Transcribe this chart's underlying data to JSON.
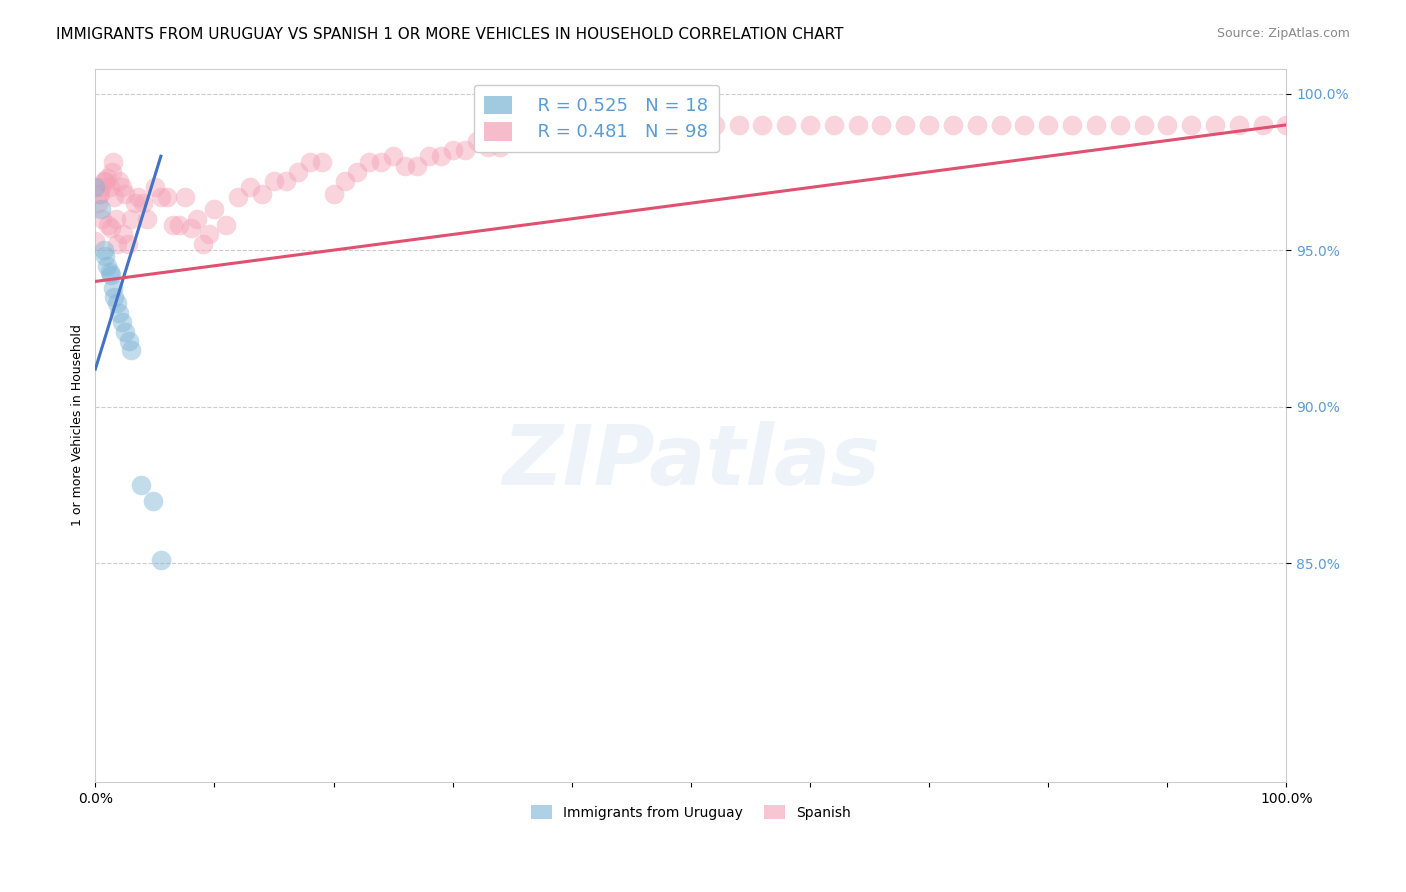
{
  "title": "IMMIGRANTS FROM URUGUAY VS SPANISH 1 OR MORE VEHICLES IN HOUSEHOLD CORRELATION CHART",
  "source": "Source: ZipAtlas.com",
  "ylabel": "1 or more Vehicles in Household",
  "watermark": "ZIPatlas",
  "blue_scatter_x": [
    0.0,
    0.005,
    0.007,
    0.008,
    0.01,
    0.012,
    0.013,
    0.015,
    0.016,
    0.018,
    0.02,
    0.022,
    0.025,
    0.028,
    0.03,
    0.038,
    0.048,
    0.055
  ],
  "blue_scatter_y": [
    0.97,
    0.963,
    0.95,
    0.948,
    0.945,
    0.943,
    0.942,
    0.938,
    0.935,
    0.933,
    0.93,
    0.927,
    0.924,
    0.921,
    0.918,
    0.875,
    0.87,
    0.851
  ],
  "pink_scatter_x": [
    0.0,
    0.002,
    0.003,
    0.004,
    0.005,
    0.006,
    0.007,
    0.008,
    0.01,
    0.011,
    0.012,
    0.013,
    0.014,
    0.015,
    0.016,
    0.017,
    0.018,
    0.02,
    0.022,
    0.023,
    0.025,
    0.027,
    0.03,
    0.033,
    0.036,
    0.04,
    0.043,
    0.05,
    0.055,
    0.06,
    0.065,
    0.07,
    0.075,
    0.08,
    0.085,
    0.09,
    0.095,
    0.1,
    0.11,
    0.12,
    0.13,
    0.14,
    0.15,
    0.16,
    0.17,
    0.18,
    0.19,
    0.2,
    0.21,
    0.22,
    0.23,
    0.24,
    0.25,
    0.26,
    0.27,
    0.28,
    0.29,
    0.3,
    0.31,
    0.32,
    0.33,
    0.34,
    0.35,
    0.36,
    0.37,
    0.38,
    0.39,
    0.4,
    0.42,
    0.44,
    0.46,
    0.48,
    0.5,
    0.52,
    0.54,
    0.56,
    0.58,
    0.6,
    0.62,
    0.64,
    0.66,
    0.68,
    0.7,
    0.72,
    0.74,
    0.76,
    0.78,
    0.8,
    0.82,
    0.84,
    0.86,
    0.88,
    0.9,
    0.92,
    0.94,
    0.96,
    0.98,
    1.0
  ],
  "pink_scatter_y": [
    0.953,
    0.965,
    0.968,
    0.968,
    0.97,
    0.96,
    0.972,
    0.972,
    0.973,
    0.958,
    0.97,
    0.957,
    0.975,
    0.978,
    0.967,
    0.96,
    0.952,
    0.972,
    0.97,
    0.955,
    0.968,
    0.952,
    0.96,
    0.965,
    0.967,
    0.965,
    0.96,
    0.97,
    0.967,
    0.967,
    0.958,
    0.958,
    0.967,
    0.957,
    0.96,
    0.952,
    0.955,
    0.963,
    0.958,
    0.967,
    0.97,
    0.968,
    0.972,
    0.972,
    0.975,
    0.978,
    0.978,
    0.968,
    0.972,
    0.975,
    0.978,
    0.978,
    0.98,
    0.977,
    0.977,
    0.98,
    0.98,
    0.982,
    0.982,
    0.985,
    0.983,
    0.983,
    0.985,
    0.985,
    0.985,
    0.985,
    0.985,
    0.985,
    0.987,
    0.987,
    0.987,
    0.99,
    0.99,
    0.99,
    0.99,
    0.99,
    0.99,
    0.99,
    0.99,
    0.99,
    0.99,
    0.99,
    0.99,
    0.99,
    0.99,
    0.99,
    0.99,
    0.99,
    0.99,
    0.99,
    0.99,
    0.99,
    0.99,
    0.99,
    0.99,
    0.99,
    0.99,
    0.99
  ],
  "xlim": [
    0.0,
    1.0
  ],
  "ylim": [
    0.78,
    1.008
  ],
  "ytick_positions": [
    0.85,
    0.9,
    0.95,
    1.0
  ],
  "ytick_labels": [
    "85.0%",
    "90.0%",
    "95.0%",
    "100.0%"
  ],
  "xtick_positions": [
    0.0,
    0.1,
    0.2,
    0.3,
    0.4,
    0.5,
    0.6,
    0.7,
    0.8,
    0.9,
    1.0
  ],
  "xtick_labels": [
    "0.0%",
    "",
    "",
    "",
    "",
    "",
    "",
    "",
    "",
    "",
    "100.0%"
  ],
  "blue_line_x0": 0.0,
  "blue_line_y0": 0.912,
  "blue_line_x1": 0.055,
  "blue_line_y1": 0.98,
  "pink_line_x0": 0.0,
  "pink_line_y0": 0.94,
  "pink_line_x1": 1.0,
  "pink_line_y1": 0.99,
  "blue_color": "#7ab3d4",
  "pink_color": "#f4a0b5",
  "blue_line_color": "#4472c4",
  "pink_line_color": "#e05070",
  "legend_R_blue": "R = 0.525",
  "legend_N_blue": "N = 18",
  "legend_R_pink": "R = 0.481",
  "legend_N_pink": "N = 98",
  "legend_label_blue": "Immigrants from Uruguay",
  "legend_label_pink": "Spanish",
  "title_fontsize": 11,
  "axis_label_fontsize": 9,
  "tick_fontsize": 10,
  "legend_fontsize": 13,
  "source_fontsize": 9,
  "tick_color_right": "#5b9bd5"
}
